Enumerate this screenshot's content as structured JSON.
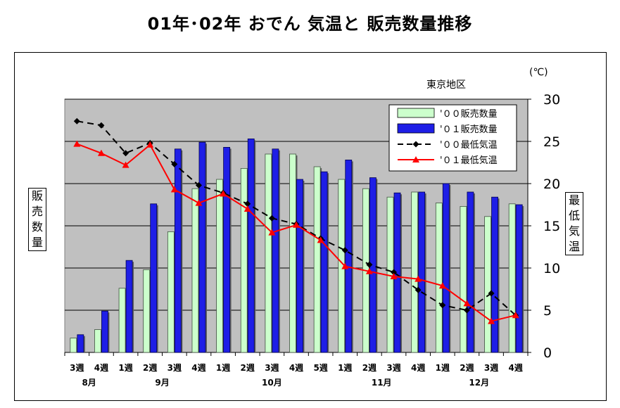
{
  "page": {
    "title": "01年･02年 おでん 気温と 販売数量推移",
    "region": "東京地区",
    "unit": "(℃)",
    "ylabel_left": [
      "販",
      "売",
      "数",
      "量"
    ],
    "ylabel_right": [
      "最",
      "低",
      "気",
      "温"
    ]
  },
  "chart_data": {
    "type": "bar",
    "title": "01年･02年 おでん 気温と 販売数量推移",
    "categories": [
      "3週",
      "4週",
      "1週",
      "2週",
      "3週",
      "4週",
      "1週",
      "2週",
      "3週",
      "4週",
      "5週",
      "1週",
      "2週",
      "3週",
      "4週",
      "1週",
      "2週",
      "3週",
      "4週"
    ],
    "month_labels": [
      {
        "label": "8月",
        "from": 0,
        "to": 1
      },
      {
        "label": "9月",
        "from": 2,
        "to": 5
      },
      {
        "label": "10月",
        "from": 6,
        "to": 10
      },
      {
        "label": "11月",
        "from": 11,
        "to": 14
      },
      {
        "label": "12月",
        "from": 15,
        "to": 18
      }
    ],
    "ylim": [
      0,
      30
    ],
    "yticks": [
      "0",
      "5",
      "10",
      "15",
      "20",
      "25",
      "30"
    ],
    "grid": true,
    "legend_position": "top-right",
    "series": [
      {
        "name": "'００販売数量",
        "kind": "bar",
        "color": "#ccffcc",
        "values": [
          1.7,
          2.7,
          7.6,
          9.8,
          14.3,
          19.4,
          20.5,
          21.8,
          23.5,
          23.5,
          22.0,
          20.5,
          19.4,
          18.4,
          19.0,
          17.7,
          17.3,
          16.1,
          17.6
        ]
      },
      {
        "name": "'０１販売数量",
        "kind": "bar",
        "color": "#1e1ee6",
        "values": [
          2.1,
          4.9,
          10.9,
          17.6,
          24.1,
          24.9,
          24.3,
          25.3,
          24.1,
          20.5,
          21.4,
          22.8,
          20.7,
          18.9,
          19.0,
          20.0,
          19.0,
          18.4,
          17.5
        ]
      },
      {
        "name": "'００最低気温",
        "kind": "line",
        "color": "#000000",
        "values": [
          27.4,
          26.9,
          23.6,
          24.8,
          22.3,
          19.8,
          18.9,
          17.6,
          15.9,
          15.2,
          13.5,
          12.1,
          10.4,
          9.5,
          7.4,
          5.6,
          5.0,
          7.0,
          4.4
        ]
      },
      {
        "name": "'０１最低気温",
        "kind": "line",
        "color": "#ff0000",
        "values": [
          24.7,
          23.6,
          22.2,
          24.6,
          19.3,
          17.7,
          18.8,
          17.0,
          14.2,
          15.1,
          13.3,
          10.2,
          9.6,
          9.0,
          8.7,
          7.9,
          5.8,
          3.7,
          4.4
        ]
      }
    ]
  }
}
